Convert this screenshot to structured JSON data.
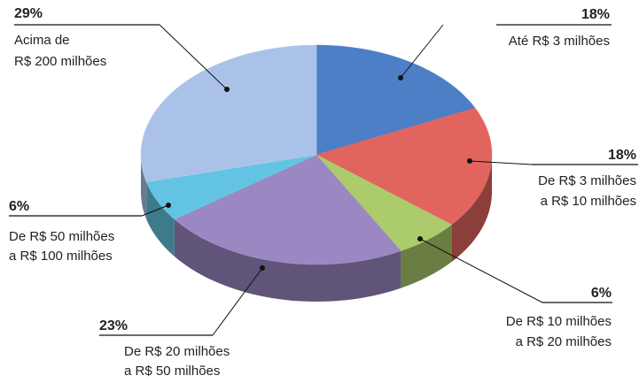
{
  "chart_data": {
    "type": "pie",
    "categories": [
      [
        "Até R$ 3 milhões"
      ],
      [
        "De R$ 3 milhões",
        "a R$ 10 milhões"
      ],
      [
        "De R$ 10 milhões",
        "a R$ 20 milhões"
      ],
      [
        "De R$ 20 milhões",
        "a R$ 50 milhões"
      ],
      [
        "De R$ 50 milhões",
        "a R$ 100 milhões"
      ],
      [
        "Acima de",
        "R$ 200 milhões"
      ]
    ],
    "values": [
      18,
      18,
      6,
      23,
      6,
      29
    ],
    "value_labels": [
      "18%",
      "18%",
      "6%",
      "23%",
      "6%",
      "29%"
    ],
    "colors": [
      "#4d7fc6",
      "#e2645e",
      "#abcb6c",
      "#9b88c2",
      "#62c4e2",
      "#abc2e8"
    ]
  }
}
